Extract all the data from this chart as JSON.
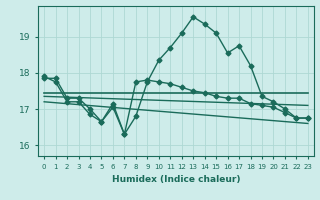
{
  "bg_color": "#ceecea",
  "grid_color": "#aed8d4",
  "line_color": "#1a6b5a",
  "xlabel": "Humidex (Indice chaleur)",
  "ylim": [
    15.7,
    19.85
  ],
  "xlim": [
    -0.5,
    23.5
  ],
  "yticks": [
    16,
    17,
    18,
    19
  ],
  "xticks": [
    0,
    1,
    2,
    3,
    4,
    5,
    6,
    7,
    8,
    9,
    10,
    11,
    12,
    13,
    14,
    15,
    16,
    17,
    18,
    19,
    20,
    21,
    22,
    23
  ],
  "series": [
    {
      "x": [
        0,
        1,
        2,
        3,
        4,
        5,
        6,
        7,
        8,
        9,
        10,
        11,
        12,
        13,
        14,
        15,
        16,
        17,
        18,
        19,
        20,
        21,
        22,
        23
      ],
      "y": [
        17.9,
        17.75,
        17.2,
        17.2,
        16.85,
        16.65,
        17.05,
        16.3,
        16.8,
        17.75,
        18.35,
        18.7,
        19.1,
        19.55,
        19.35,
        19.1,
        18.55,
        18.75,
        18.2,
        17.35,
        17.2,
        17.0,
        16.75,
        16.75
      ],
      "marker": "D",
      "markersize": 2.5,
      "linewidth": 1.0
    },
    {
      "x": [
        0,
        23
      ],
      "y": [
        17.45,
        17.45
      ],
      "marker": null,
      "markersize": 0,
      "linewidth": 1.2
    },
    {
      "x": [
        0,
        23
      ],
      "y": [
        17.35,
        17.1
      ],
      "marker": null,
      "markersize": 0,
      "linewidth": 1.0
    },
    {
      "x": [
        0,
        23
      ],
      "y": [
        17.2,
        16.6
      ],
      "marker": null,
      "markersize": 0,
      "linewidth": 1.0
    },
    {
      "x": [
        0,
        1,
        2,
        3,
        4,
        5,
        6,
        7,
        8,
        9,
        10,
        11,
        12,
        13,
        14,
        15,
        16,
        17,
        18,
        19,
        20,
        21,
        22,
        23
      ],
      "y": [
        17.85,
        17.85,
        17.3,
        17.3,
        17.0,
        16.65,
        17.15,
        16.3,
        17.75,
        17.8,
        17.75,
        17.7,
        17.6,
        17.5,
        17.45,
        17.35,
        17.3,
        17.3,
        17.15,
        17.1,
        17.05,
        16.9,
        16.75,
        16.75
      ],
      "marker": "D",
      "markersize": 2.5,
      "linewidth": 1.0
    }
  ]
}
